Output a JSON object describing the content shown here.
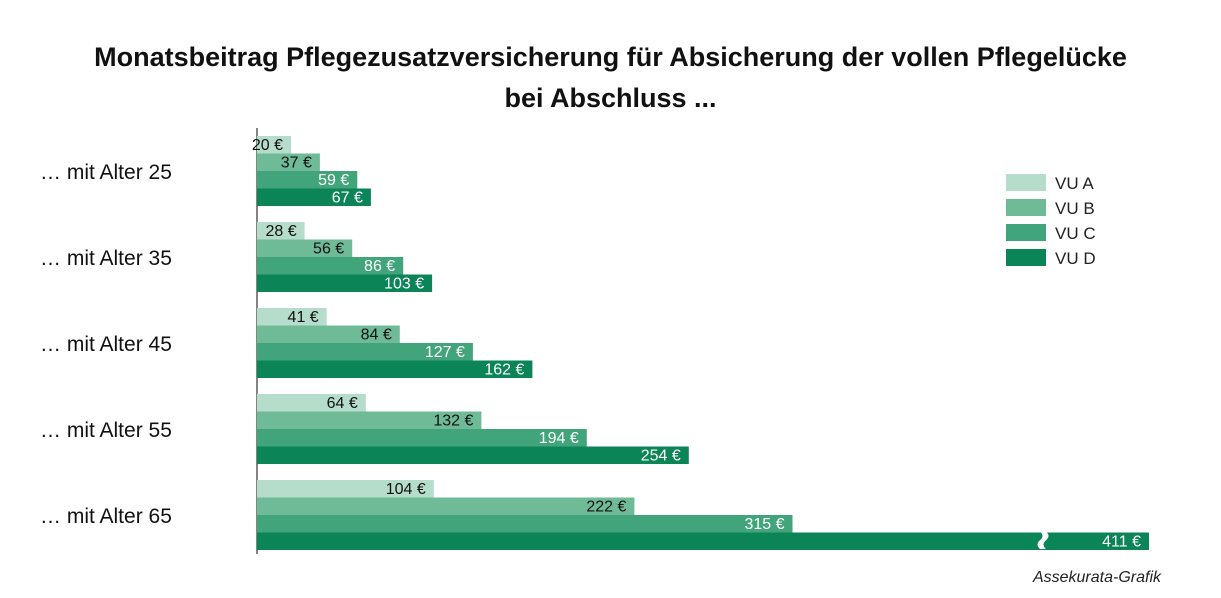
{
  "chart_data": {
    "type": "bar",
    "orientation": "horizontal",
    "title": "Monatsbeitrag Pflegezusatzversicherung für Absicherung der vollen Pflegelücke",
    "subtitle": "bei Abschluss ...",
    "categories": [
      "… mit Alter 25",
      "… mit Alter 35",
      "… mit Alter 45",
      "… mit Alter 55",
      "… mit Alter 65"
    ],
    "series": [
      {
        "name": "VU A",
        "color": "#b6dccb",
        "values": [
          20,
          28,
          41,
          64,
          104
        ],
        "labels": [
          "20 €",
          "28 €",
          "41 €",
          "64 €",
          "104 €"
        ]
      },
      {
        "name": "VU B",
        "color": "#6fbb97",
        "values": [
          37,
          56,
          84,
          132,
          222
        ],
        "labels": [
          "37 €",
          "56 €",
          "84 €",
          "132 €",
          "222 €"
        ]
      },
      {
        "name": "VU C",
        "color": "#42a47b",
        "values": [
          59,
          86,
          127,
          194,
          315
        ],
        "labels": [
          "59 €",
          "86 €",
          "127 €",
          "194 €",
          "315 €"
        ]
      },
      {
        "name": "VU D",
        "color": "#0b8457",
        "values": [
          67,
          103,
          162,
          254,
          411
        ],
        "labels": [
          "67 €",
          "103 €",
          "162 €",
          "254 €",
          "411 €"
        ]
      }
    ],
    "xlim": [
      0,
      350
    ],
    "axis_break": {
      "series": "VU D",
      "category": "… mit Alter 65"
    },
    "legend_position": "top-right",
    "grid": false
  },
  "credit": "Assekurata-Grafik"
}
